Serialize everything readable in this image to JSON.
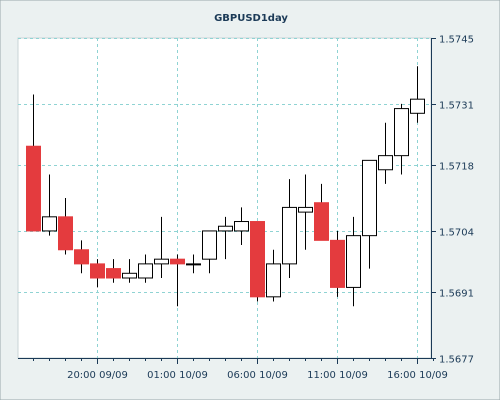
{
  "chart_data": {
    "type": "candlestick",
    "title": "GBPUSD1day",
    "xlabel": "",
    "ylabel": "",
    "ylim": [
      1.5677,
      1.5745
    ],
    "y_ticks": [
      1.5677,
      1.5691,
      1.5704,
      1.5718,
      1.5731,
      1.5745
    ],
    "y_tick_labels": [
      "1.5677",
      "1.5691",
      "1.5704",
      "1.5718",
      "1.5731",
      "1.5745"
    ],
    "x_tick_labels": [
      "20:00 09/09",
      "01:00 10/09",
      "06:00 10/09",
      "11:00 10/09",
      "16:00 10/09"
    ],
    "x_tick_index": [
      4,
      9,
      14,
      19,
      24
    ],
    "grid": true,
    "legend": "none",
    "colors": {
      "up": "#ffffff",
      "down": "#e43b3e",
      "border": "#000000",
      "grid": "#8fd3d3",
      "plot_bg": "#ffffff",
      "bg": "#ebf1f1",
      "text": "#1b3a57"
    },
    "candles": [
      {
        "open": 1.5722,
        "high": 1.5733,
        "low": 1.5704,
        "close": 1.5704
      },
      {
        "open": 1.5704,
        "high": 1.5716,
        "low": 1.5703,
        "close": 1.5707
      },
      {
        "open": 1.5707,
        "high": 1.5711,
        "low": 1.5699,
        "close": 1.57
      },
      {
        "open": 1.57,
        "high": 1.5702,
        "low": 1.5695,
        "close": 1.5697
      },
      {
        "open": 1.5697,
        "high": 1.5698,
        "low": 1.5692,
        "close": 1.5694
      },
      {
        "open": 1.5696,
        "high": 1.5698,
        "low": 1.5693,
        "close": 1.5694
      },
      {
        "open": 1.5694,
        "high": 1.5698,
        "low": 1.5693,
        "close": 1.5695
      },
      {
        "open": 1.5694,
        "high": 1.5699,
        "low": 1.5693,
        "close": 1.5697
      },
      {
        "open": 1.5697,
        "high": 1.5707,
        "low": 1.5694,
        "close": 1.5698
      },
      {
        "open": 1.5698,
        "high": 1.5699,
        "low": 1.5688,
        "close": 1.5697
      },
      {
        "open": 1.5697,
        "high": 1.5699,
        "low": 1.5695,
        "close": 1.5697
      },
      {
        "open": 1.5698,
        "high": 1.5704,
        "low": 1.5695,
        "close": 1.5704
      },
      {
        "open": 1.5704,
        "high": 1.5707,
        "low": 1.5698,
        "close": 1.5705
      },
      {
        "open": 1.5704,
        "high": 1.5709,
        "low": 1.5701,
        "close": 1.5706
      },
      {
        "open": 1.5706,
        "high": 1.5706,
        "low": 1.5689,
        "close": 1.569
      },
      {
        "open": 1.569,
        "high": 1.57,
        "low": 1.5689,
        "close": 1.5697
      },
      {
        "open": 1.5697,
        "high": 1.5715,
        "low": 1.5694,
        "close": 1.5709
      },
      {
        "open": 1.5708,
        "high": 1.5716,
        "low": 1.57,
        "close": 1.5709
      },
      {
        "open": 1.571,
        "high": 1.5714,
        "low": 1.5702,
        "close": 1.5702
      },
      {
        "open": 1.5702,
        "high": 1.5704,
        "low": 1.569,
        "close": 1.5692
      },
      {
        "open": 1.5692,
        "high": 1.5707,
        "low": 1.5688,
        "close": 1.5703
      },
      {
        "open": 1.5703,
        "high": 1.5719,
        "low": 1.5696,
        "close": 1.5719
      },
      {
        "open": 1.5717,
        "high": 1.5727,
        "low": 1.5714,
        "close": 1.572
      },
      {
        "open": 1.572,
        "high": 1.5731,
        "low": 1.5716,
        "close": 1.573
      },
      {
        "open": 1.5729,
        "high": 1.5739,
        "low": 1.5727,
        "close": 1.5732
      }
    ]
  }
}
